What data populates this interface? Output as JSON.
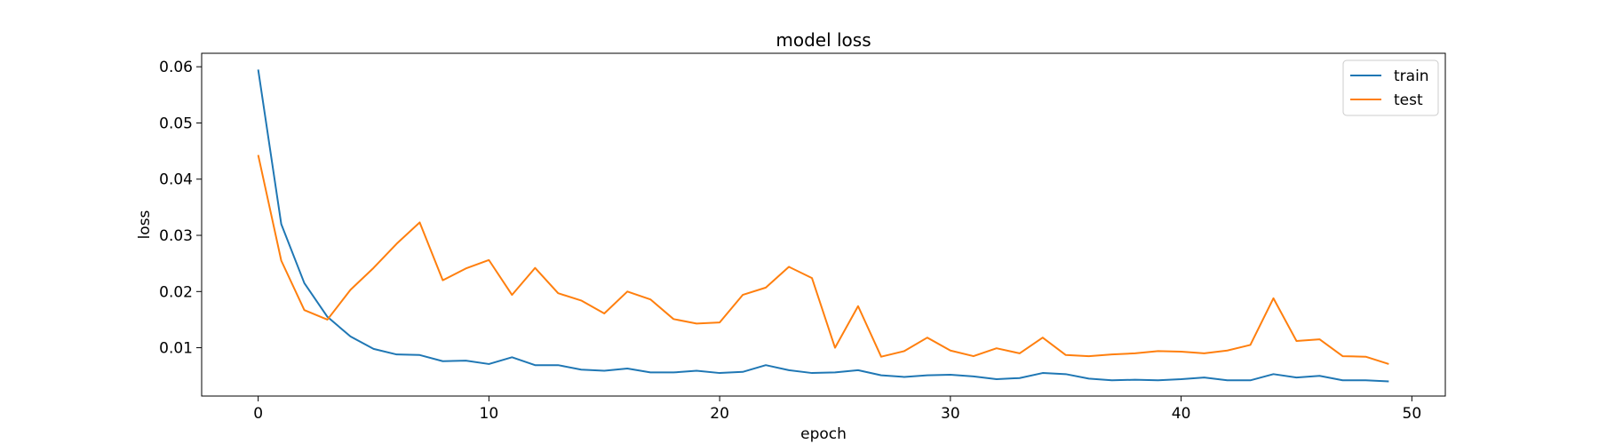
{
  "chart_data": {
    "type": "line",
    "title": "model loss",
    "xlabel": "epoch",
    "ylabel": "loss",
    "xlim": [
      -2.45,
      51.45
    ],
    "ylim": [
      0.0014,
      0.0624
    ],
    "xticks": [
      0,
      10,
      20,
      30,
      40,
      50
    ],
    "yticks": [
      0.01,
      0.02,
      0.03,
      0.04,
      0.05,
      0.06
    ],
    "xtick_labels": [
      "0",
      "10",
      "20",
      "30",
      "40",
      "50"
    ],
    "ytick_labels": [
      "0.01",
      "0.02",
      "0.03",
      "0.04",
      "0.05",
      "0.06"
    ],
    "grid": false,
    "legend_position": "top-right",
    "x": [
      0,
      1,
      2,
      3,
      4,
      5,
      6,
      7,
      8,
      9,
      10,
      11,
      12,
      13,
      14,
      15,
      16,
      17,
      18,
      19,
      20,
      21,
      22,
      23,
      24,
      25,
      26,
      27,
      28,
      29,
      30,
      31,
      32,
      33,
      34,
      35,
      36,
      37,
      38,
      39,
      40,
      41,
      42,
      43,
      44,
      45,
      46,
      47,
      48,
      49
    ],
    "series": [
      {
        "name": "train",
        "color": "#1f77b4",
        "values": [
          0.0595,
          0.032,
          0.0215,
          0.0155,
          0.012,
          0.0098,
          0.0088,
          0.0087,
          0.0076,
          0.0077,
          0.0071,
          0.0083,
          0.0069,
          0.0069,
          0.0061,
          0.0059,
          0.0063,
          0.0056,
          0.0056,
          0.0059,
          0.0055,
          0.0057,
          0.0069,
          0.006,
          0.0055,
          0.0056,
          0.006,
          0.0051,
          0.0048,
          0.0051,
          0.0052,
          0.0049,
          0.0044,
          0.0046,
          0.0055,
          0.0053,
          0.0045,
          0.0042,
          0.0043,
          0.0042,
          0.0044,
          0.0047,
          0.0042,
          0.0042,
          0.0053,
          0.0047,
          0.005,
          0.0042,
          0.0042,
          0.004
        ]
      },
      {
        "name": "test",
        "color": "#ff7f0e",
        "values": [
          0.0443,
          0.0255,
          0.0167,
          0.015,
          0.0203,
          0.0242,
          0.0285,
          0.0323,
          0.022,
          0.0241,
          0.0256,
          0.0194,
          0.0242,
          0.0197,
          0.0184,
          0.0161,
          0.02,
          0.0186,
          0.0151,
          0.0143,
          0.0145,
          0.0194,
          0.0207,
          0.0244,
          0.0224,
          0.01,
          0.0174,
          0.0084,
          0.0094,
          0.0118,
          0.0095,
          0.0085,
          0.0099,
          0.009,
          0.0118,
          0.0087,
          0.0085,
          0.0088,
          0.009,
          0.0094,
          0.0093,
          0.009,
          0.0095,
          0.0105,
          0.0188,
          0.0112,
          0.0115,
          0.0085,
          0.0084,
          0.0071
        ]
      }
    ]
  }
}
